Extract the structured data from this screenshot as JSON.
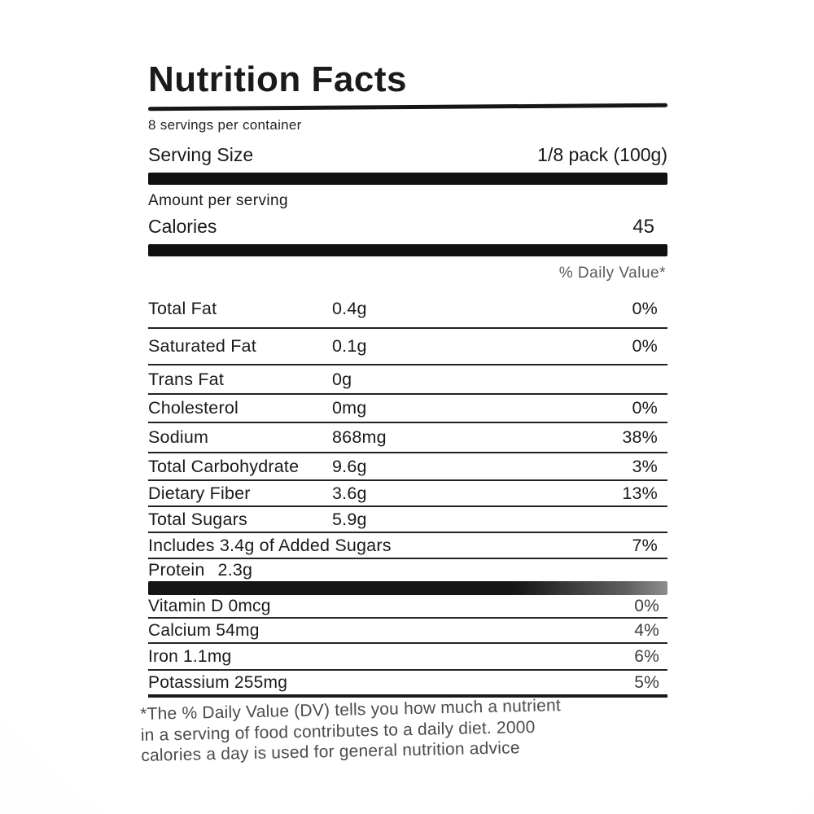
{
  "colors": {
    "ink": "#1a1a1a",
    "background": "#ffffff",
    "faded_ink": "#4c4c4c"
  },
  "label": {
    "title": "Nutrition Facts",
    "servings_per_container": "8 servings per container",
    "serving_size_label": "Serving Size",
    "serving_size_value": "1/8 pack (100g)",
    "amount_per_serving": "Amount per serving",
    "calories_label": "Calories",
    "calories_value": "45",
    "daily_value_header": "% Daily Value*",
    "nutrients": [
      {
        "name": "Total Fat",
        "amount": "0.4g",
        "dv": "0%"
      },
      {
        "name": "Saturated Fat",
        "amount": "0.1g",
        "dv": "0%"
      },
      {
        "name": "Trans Fat",
        "amount": "0g",
        "dv": ""
      },
      {
        "name": "Cholesterol",
        "amount": "0mg",
        "dv": "0%"
      },
      {
        "name": "Sodium",
        "amount": "868mg",
        "dv": "38%"
      },
      {
        "name": "Total Carbohydrate",
        "amount": "9.6g",
        "dv": "3%"
      },
      {
        "name": "Dietary Fiber",
        "amount": "3.6g",
        "dv": "13%"
      },
      {
        "name": "Total Sugars",
        "amount": "5.9g",
        "dv": ""
      },
      {
        "name": "Includes 3.4g of Added Sugars",
        "amount": "",
        "dv": "7%"
      },
      {
        "name": "Protein",
        "amount": "2.3g",
        "dv": ""
      }
    ],
    "vitamins": [
      {
        "name": "Vitamin D 0mcg",
        "dv": "0%"
      },
      {
        "name": "Calcium 54mg",
        "dv": "4%"
      },
      {
        "name": "Iron 1.1mg",
        "dv": "6%"
      },
      {
        "name": "Potassium 255mg",
        "dv": "5%"
      }
    ],
    "footnote_lines": [
      "*The % Daily Value (DV) tells you how much a nutrient",
      "in a serving of food contributes to a daily diet. 2000",
      "calories a day is used for general nutrition advice"
    ]
  }
}
